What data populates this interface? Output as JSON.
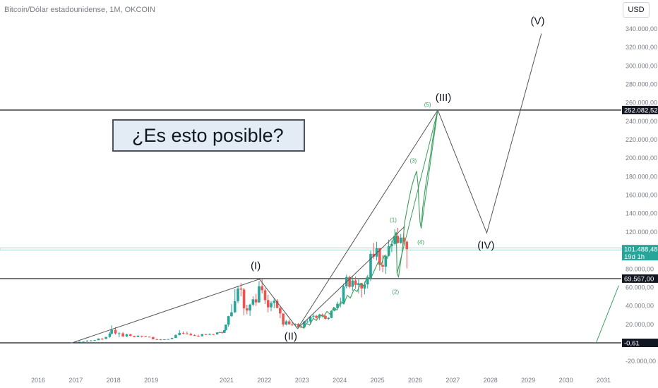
{
  "header": {
    "title": "Bitcoin/Dólar estadounidense, 1M, OKCOIN",
    "currency": "USD"
  },
  "callout": {
    "text": "¿Es esto posible?"
  },
  "colors": {
    "up": "#26a69a",
    "down": "#ef5350",
    "projection": "#3a9f5c",
    "trend": "#555555",
    "level": "#131722",
    "price_tag": "#26a69a",
    "band": "#a8d8d3"
  },
  "chart_data": {
    "type": "candlestick",
    "title": "Bitcoin/Dólar estadounidense, 1M, OKCOIN",
    "y_range": [
      -30000,
      350000
    ],
    "x_range": [
      2015.5,
      2031.4
    ],
    "y_ticks": [
      {
        "v": 340000,
        "label": "340.000,00"
      },
      {
        "v": 320000,
        "label": "320.000,00"
      },
      {
        "v": 300000,
        "label": "300.000,00"
      },
      {
        "v": 280000,
        "label": "280.000,00"
      },
      {
        "v": 260000,
        "label": "260.000,00"
      },
      {
        "v": 240000,
        "label": "240.000,00"
      },
      {
        "v": 220000,
        "label": "220.000,00"
      },
      {
        "v": 200000,
        "label": "200.000,00"
      },
      {
        "v": 180000,
        "label": "180.000,00"
      },
      {
        "v": 160000,
        "label": "160.000,00"
      },
      {
        "v": 140000,
        "label": "140.000,00"
      },
      {
        "v": 120000,
        "label": "120.000,00"
      },
      {
        "v": 80000,
        "label": "80.000,00"
      },
      {
        "v": 60000,
        "label": "60.000,00"
      },
      {
        "v": 40000,
        "label": "40.000,00"
      },
      {
        "v": 20000,
        "label": "20.000,00"
      },
      {
        "v": -20000,
        "label": "-20.000,00"
      }
    ],
    "x_ticks": [
      "2016",
      "2017",
      "2018",
      "2019",
      "2021",
      "2022",
      "2023",
      "2024",
      "2025",
      "2026",
      "2027",
      "2028",
      "2029",
      "2030",
      "2031"
    ],
    "x_tick_years": [
      2016,
      2017,
      2018,
      2019,
      2021,
      2022,
      2023,
      2024,
      2025,
      2026,
      2027,
      2028,
      2029,
      2030,
      2031
    ],
    "price_tags": [
      {
        "value": 252082.52,
        "label": "252.082,52",
        "style": "dark"
      },
      {
        "value": 101488.48,
        "label": "101.488,48",
        "sub": "19d 1h",
        "style": "green"
      },
      {
        "value": 69567.0,
        "label": "69.567,00",
        "style": "dark"
      },
      {
        "value": -0.61,
        "label": "-0,61",
        "style": "dark"
      }
    ],
    "horizontal_levels": [
      252082.52,
      69567.0,
      -0.61
    ],
    "highlight_band": [
      100600,
      102800
    ],
    "candles": [
      [
        2016.9,
        480,
        520,
        460,
        540
      ],
      [
        2017.0,
        960,
        980,
        760,
        1150
      ],
      [
        2017.1,
        1180,
        1200,
        930,
        1290
      ],
      [
        2017.2,
        1080,
        1350,
        1050,
        1400
      ],
      [
        2017.3,
        1350,
        2300,
        1350,
        2750
      ],
      [
        2017.4,
        2300,
        2500,
        2200,
        3000
      ],
      [
        2017.5,
        2500,
        2900,
        1800,
        2950
      ],
      [
        2017.6,
        2900,
        4700,
        2800,
        4800
      ],
      [
        2017.7,
        4700,
        4300,
        3000,
        4980
      ],
      [
        2017.8,
        4300,
        6400,
        4100,
        6500
      ],
      [
        2017.9,
        6400,
        10000,
        5500,
        11500
      ],
      [
        2017.95,
        10000,
        14000,
        9000,
        19000
      ],
      [
        2018.05,
        14000,
        10200,
        9000,
        17000
      ],
      [
        2018.15,
        10200,
        10300,
        6000,
        11800
      ],
      [
        2018.25,
        10300,
        6900,
        6600,
        11700
      ],
      [
        2018.35,
        6900,
        9200,
        6500,
        9900
      ],
      [
        2018.45,
        9200,
        7500,
        7000,
        9900
      ],
      [
        2018.55,
        7500,
        6400,
        5800,
        7800
      ],
      [
        2018.65,
        6400,
        7700,
        6100,
        8500
      ],
      [
        2018.75,
        7700,
        7000,
        5900,
        7800
      ],
      [
        2018.85,
        7000,
        6600,
        6100,
        7400
      ],
      [
        2018.95,
        6600,
        6300,
        6200,
        6800
      ],
      [
        2019.05,
        6300,
        4000,
        3700,
        6500
      ],
      [
        2019.15,
        4000,
        3700,
        3200,
        4300
      ],
      [
        2019.25,
        3700,
        3500,
        3300,
        4100
      ],
      [
        2019.35,
        3500,
        3800,
        3400,
        3900
      ],
      [
        2019.45,
        3800,
        4100,
        3600,
        4200
      ],
      [
        2019.55,
        4100,
        5300,
        4100,
        5600
      ],
      [
        2019.65,
        5300,
        8500,
        5300,
        9100
      ],
      [
        2019.75,
        8500,
        10800,
        8000,
        13800
      ],
      [
        2019.85,
        10800,
        10100,
        9100,
        12300
      ],
      [
        2019.95,
        10100,
        9600,
        9300,
        12200
      ],
      [
        2020.05,
        9600,
        8300,
        7800,
        10900
      ],
      [
        2020.15,
        8300,
        7500,
        7400,
        9200
      ],
      [
        2020.25,
        7500,
        7200,
        6500,
        8900
      ],
      [
        2020.35,
        7200,
        9400,
        7000,
        9700
      ],
      [
        2020.45,
        9400,
        8700,
        8400,
        9600
      ],
      [
        2020.55,
        8700,
        9400,
        8600,
        10300
      ],
      [
        2020.65,
        9400,
        9100,
        8800,
        9800
      ],
      [
        2020.75,
        9100,
        11300,
        9000,
        11500
      ],
      [
        2020.82,
        11300,
        11600,
        10800,
        12100
      ],
      [
        2020.88,
        11600,
        10800,
        9900,
        12500
      ],
      [
        2020.94,
        10800,
        13800,
        10500,
        14000
      ],
      [
        2020.98,
        13800,
        19700,
        13200,
        19900
      ],
      [
        2021.05,
        19700,
        28900,
        17500,
        29300
      ],
      [
        2021.13,
        28900,
        33100,
        28200,
        41900
      ],
      [
        2021.22,
        33100,
        45200,
        32300,
        58300
      ],
      [
        2021.3,
        45200,
        58800,
        43000,
        61700
      ],
      [
        2021.38,
        58800,
        57700,
        50300,
        64800
      ],
      [
        2021.46,
        57700,
        37300,
        30000,
        59500
      ],
      [
        2021.54,
        37300,
        35000,
        31000,
        41300
      ],
      [
        2021.62,
        35000,
        41400,
        29300,
        42400
      ],
      [
        2021.7,
        41400,
        47100,
        39600,
        50400
      ],
      [
        2021.78,
        47100,
        43800,
        40000,
        52900
      ],
      [
        2021.86,
        43800,
        61300,
        43300,
        66900
      ],
      [
        2021.94,
        61300,
        57000,
        53500,
        69000
      ],
      [
        2022.02,
        57000,
        46300,
        42000,
        59200
      ],
      [
        2022.1,
        46300,
        38500,
        33000,
        52000
      ],
      [
        2022.18,
        38500,
        43200,
        34300,
        45500
      ],
      [
        2022.26,
        43200,
        45500,
        37600,
        48200
      ],
      [
        2022.34,
        45500,
        37700,
        37600,
        47400
      ],
      [
        2022.42,
        37700,
        31800,
        26700,
        40100
      ],
      [
        2022.5,
        31800,
        19900,
        17600,
        31900
      ],
      [
        2022.58,
        19900,
        23300,
        18900,
        24700
      ],
      [
        2022.66,
        23300,
        20100,
        19600,
        25200
      ],
      [
        2022.74,
        20100,
        19400,
        18200,
        22700
      ],
      [
        2022.82,
        19400,
        20500,
        18400,
        21100
      ],
      [
        2022.9,
        20500,
        17200,
        15500,
        21500
      ],
      [
        2022.98,
        17200,
        16600,
        16300,
        18400
      ],
      [
        2023.06,
        16600,
        23100,
        16500,
        23900
      ],
      [
        2023.14,
        23100,
        23200,
        21400,
        25200
      ],
      [
        2023.22,
        23200,
        28500,
        19600,
        29200
      ],
      [
        2023.3,
        28500,
        29300,
        26900,
        31000
      ],
      [
        2023.38,
        29300,
        27200,
        25800,
        30000
      ],
      [
        2023.46,
        27200,
        30500,
        24800,
        31400
      ],
      [
        2023.54,
        30500,
        29200,
        28900,
        31800
      ],
      [
        2023.62,
        29200,
        26000,
        25200,
        30200
      ],
      [
        2023.7,
        26000,
        27000,
        24900,
        28000
      ],
      [
        2023.78,
        27000,
        34700,
        26600,
        35200
      ],
      [
        2023.86,
        34700,
        37700,
        34100,
        38400
      ],
      [
        2023.94,
        37700,
        42300,
        37600,
        44700
      ],
      [
        2024.02,
        42300,
        42600,
        38500,
        48900
      ],
      [
        2024.1,
        42600,
        61200,
        41900,
        64000
      ],
      [
        2024.18,
        61200,
        71300,
        59000,
        73800
      ],
      [
        2024.26,
        71300,
        60700,
        59100,
        72700
      ],
      [
        2024.34,
        60700,
        67500,
        56500,
        71900
      ],
      [
        2024.42,
        67500,
        62700,
        58500,
        71900
      ],
      [
        2024.5,
        62700,
        64600,
        53500,
        70000
      ],
      [
        2024.58,
        64600,
        58900,
        49100,
        65000
      ],
      [
        2024.66,
        58900,
        63300,
        52500,
        66500
      ],
      [
        2024.74,
        63300,
        70200,
        58900,
        73600
      ],
      [
        2024.82,
        70200,
        96400,
        66800,
        99800
      ],
      [
        2024.9,
        96400,
        93400,
        90700,
        108300
      ],
      [
        2024.98,
        93400,
        102400,
        89200,
        109300
      ],
      [
        2025.06,
        102400,
        84300,
        78200,
        102500
      ],
      [
        2025.14,
        84300,
        82500,
        76600,
        95000
      ],
      [
        2025.22,
        82500,
        94200,
        74600,
        95700
      ],
      [
        2025.3,
        94200,
        104600,
        93400,
        111800
      ],
      [
        2025.38,
        104600,
        107100,
        98200,
        110500
      ],
      [
        2025.46,
        107100,
        115800,
        105300,
        123200
      ],
      [
        2025.54,
        115800,
        108200,
        107500,
        124500
      ],
      [
        2025.62,
        108200,
        114000,
        107300,
        117900
      ],
      [
        2025.7,
        114000,
        109500,
        103500,
        126200
      ],
      [
        2025.78,
        109500,
        101500,
        80500,
        111000
      ]
    ],
    "overlay_trendlines": [
      [
        [
          2016.9,
          0
        ],
        [
          2021.87,
          69000
        ],
        [
          2022.88,
          15500
        ],
        [
          2026.6,
          252000
        ]
      ],
      [
        [
          2022.88,
          15500
        ],
        [
          2025.72,
          126000
        ]
      ],
      [
        [
          2026.6,
          252000
        ],
        [
          2027.9,
          119000
        ],
        [
          2029.35,
          335000
        ]
      ]
    ],
    "projection_path": [
      [
        2022.88,
        15500
      ],
      [
        2022.95,
        18500
      ],
      [
        2023.05,
        15800
      ],
      [
        2023.12,
        21000
      ],
      [
        2023.2,
        19200
      ],
      [
        2023.3,
        26500
      ],
      [
        2023.38,
        24200
      ],
      [
        2023.48,
        30500
      ],
      [
        2023.56,
        27800
      ],
      [
        2023.66,
        34000
      ],
      [
        2023.74,
        31000
      ],
      [
        2023.84,
        38500
      ],
      [
        2023.93,
        35500
      ],
      [
        2024.03,
        44500
      ],
      [
        2024.11,
        42000
      ],
      [
        2024.2,
        51500
      ],
      [
        2024.28,
        48500
      ],
      [
        2024.38,
        58000
      ],
      [
        2024.46,
        55500
      ],
      [
        2024.56,
        64500
      ],
      [
        2024.64,
        61000
      ],
      [
        2024.72,
        71500
      ],
      [
        2024.82,
        69500
      ],
      [
        2024.92,
        78500
      ],
      [
        2025.02,
        87500
      ],
      [
        2025.1,
        84500
      ],
      [
        2025.18,
        94500
      ],
      [
        2025.26,
        91500
      ],
      [
        2025.34,
        103500
      ],
      [
        2025.42,
        112000
      ],
      [
        2025.5,
        120000
      ],
      [
        2025.52,
        75000
      ],
      [
        2025.56,
        71500
      ],
      [
        2025.66,
        100000
      ],
      [
        2025.72,
        130000
      ],
      [
        2025.82,
        152000
      ],
      [
        2025.9,
        168000
      ],
      [
        2025.97,
        178000
      ],
      [
        2026.04,
        186000
      ],
      [
        2026.08,
        170000
      ],
      [
        2026.1,
        150000
      ],
      [
        2026.13,
        131000
      ],
      [
        2026.16,
        124000
      ],
      [
        2026.2,
        146000
      ],
      [
        2026.27,
        168000
      ],
      [
        2026.34,
        186000
      ],
      [
        2026.41,
        204000
      ],
      [
        2026.46,
        219000
      ],
      [
        2026.51,
        231000
      ],
      [
        2026.56,
        243000
      ],
      [
        2026.6,
        252000
      ]
    ],
    "projection_wedge": [
      [
        [
          2025.52,
          75000
        ],
        [
          2026.6,
          252000
        ]
      ],
      [
        [
          2026.16,
          124000
        ],
        [
          2026.6,
          252000
        ]
      ]
    ],
    "projection_tail": [
      [
        2030.8,
        0
      ],
      [
        2031.4,
        62000
      ]
    ],
    "wave_labels": [
      {
        "text": "(I)",
        "x": 2021.77,
        "y": 80000,
        "size": "big"
      },
      {
        "text": "(II)",
        "x": 2022.7,
        "y": 3500,
        "size": "big"
      },
      {
        "text": "(III)",
        "x": 2026.75,
        "y": 262000,
        "size": "big"
      },
      {
        "text": "(IV)",
        "x": 2027.88,
        "y": 102000,
        "size": "big"
      },
      {
        "text": "(V)",
        "x": 2029.25,
        "y": 345000,
        "size": "big"
      },
      {
        "text": "(1)",
        "x": 2025.42,
        "y": 131000,
        "size": "small"
      },
      {
        "text": "(2)",
        "x": 2025.48,
        "y": 53000,
        "size": "small"
      },
      {
        "text": "(3)",
        "x": 2025.95,
        "y": 195000,
        "size": "small"
      },
      {
        "text": "(4)",
        "x": 2026.15,
        "y": 107000,
        "size": "small"
      },
      {
        "text": "(5)",
        "x": 2026.33,
        "y": 256000,
        "size": "small"
      }
    ]
  }
}
